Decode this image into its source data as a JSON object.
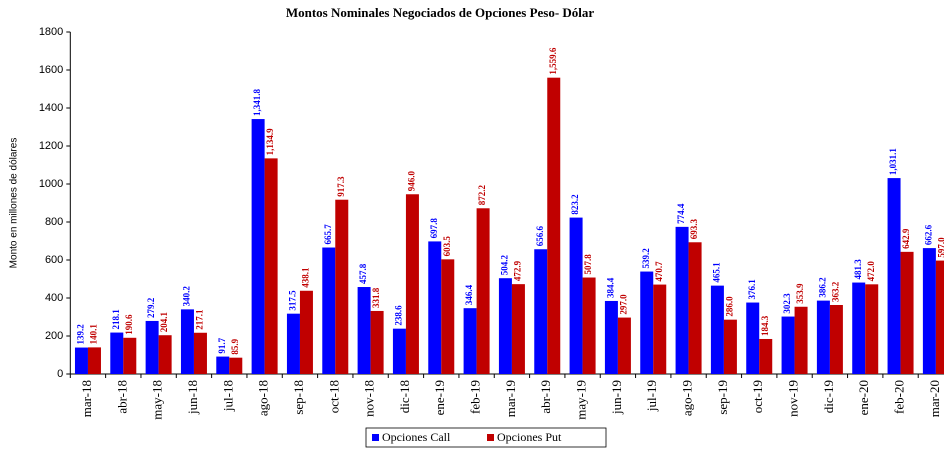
{
  "chart_data": {
    "type": "bar",
    "title": "Montos Nominales Negociados de Opciones Peso- Dólar",
    "y_label": "Monto en millones de dólares",
    "categories": [
      "mar-18",
      "abr-18",
      "may-18",
      "jun-18",
      "jul-18",
      "ago-18",
      "sep-18",
      "oct-18",
      "nov-18",
      "dic-18",
      "ene-19",
      "feb-19",
      "mar-19",
      "abr-19",
      "may-19",
      "jun-19",
      "jul-19",
      "ago-19",
      "sep-19",
      "oct-19",
      "nov-19",
      "dic-19",
      "ene-20",
      "feb-20",
      "mar-20"
    ],
    "series": [
      {
        "name": "Opciones Call",
        "color": "#0000ff",
        "values": [
          139.2,
          218.1,
          279.2,
          340.2,
          91.7,
          1341.8,
          317.5,
          665.7,
          457.8,
          238.6,
          697.8,
          346.4,
          504.2,
          656.6,
          823.2,
          384.4,
          539.2,
          774.4,
          465.1,
          376.1,
          302.3,
          386.2,
          481.3,
          1031.1,
          662.6
        ],
        "value_labels": [
          "139.2",
          "218.1",
          "279.2",
          "340.2",
          "91.7",
          "1,341.8",
          "317.5",
          "665.7",
          "457.8",
          "238.6",
          "697.8",
          "346.4",
          "504.2",
          "656.6",
          "823.2",
          "384.4",
          "539.2",
          "774.4",
          "465.1",
          "376.1",
          "302.3",
          "386.2",
          "481.3",
          "1,031.1",
          "662.6"
        ]
      },
      {
        "name": "Opciones Put",
        "color": "#c00000",
        "values": [
          140.1,
          190.6,
          204.1,
          217.1,
          85.9,
          1134.9,
          438.1,
          917.3,
          331.8,
          946.0,
          603.5,
          872.2,
          472.9,
          1559.6,
          507.8,
          297.0,
          470.7,
          693.3,
          286.0,
          184.3,
          353.9,
          363.2,
          472.0,
          642.9,
          597.0
        ],
        "value_labels": [
          "140.1",
          "190.6",
          "204.1",
          "217.1",
          "85.9",
          "1,134.9",
          "438.1",
          "917.3",
          "331.8",
          "946.0",
          "603.5",
          "872.2",
          "472.9",
          "1,559.6",
          "507.8",
          "297.0",
          "470.7",
          "693.3",
          "286.0",
          "184.3",
          "353.9",
          "363.2",
          "472.0",
          "642.9",
          "597.0"
        ]
      }
    ],
    "ylim": [
      0,
      1800
    ],
    "yticks": [
      0,
      200,
      400,
      600,
      800,
      1000,
      1200,
      1400,
      1600,
      1800
    ],
    "legend": "bottom"
  }
}
